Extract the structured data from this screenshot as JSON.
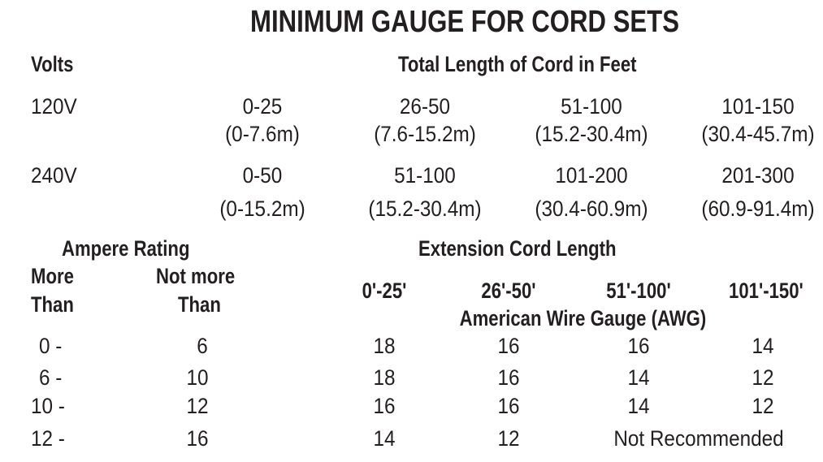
{
  "title": "MINIMUM GAUGE FOR CORD SETS",
  "volts_table": {
    "volts_header": "Volts",
    "length_header": "Total Length of Cord in Feet",
    "rows": [
      {
        "volts": "120V",
        "cells": [
          {
            "ft": "0-25",
            "m": "(0-7.6m)"
          },
          {
            "ft": "26-50",
            "m": "(7.6-15.2m)"
          },
          {
            "ft": "51-100",
            "m": "(15.2-30.4m)"
          },
          {
            "ft": "101-150",
            "m": "(30.4-45.7m)"
          }
        ]
      },
      {
        "volts": "240V",
        "cells": [
          {
            "ft": "0-50",
            "m": "(0-15.2m)"
          },
          {
            "ft": "51-100",
            "m": "(15.2-30.4m)"
          },
          {
            "ft": "101-200",
            "m": "(30.4-60.9m)"
          },
          {
            "ft": "201-300",
            "m": "(60.9-91.4m)"
          }
        ]
      }
    ]
  },
  "gauge_table": {
    "ampere_header": "Ampere Rating",
    "more_than_1": "More",
    "more_than_2": "Than",
    "not_more_1": "Not more",
    "not_more_2": "Than",
    "length_header": "Extension Cord Length",
    "lengths": [
      "0'-25'",
      "26'-50'",
      "51'-100'",
      "101'-150'"
    ],
    "awg_header": "American Wire Gauge (AWG)",
    "rows": [
      {
        "more": "0 -",
        "not_more": "6",
        "gauges": [
          "18",
          "16",
          "16",
          "14"
        ]
      },
      {
        "more": "6 -",
        "not_more": "10",
        "gauges": [
          "18",
          "16",
          "14",
          "12"
        ]
      },
      {
        "more": "10 -",
        "not_more": "12",
        "gauges": [
          "16",
          "16",
          "14",
          "12"
        ]
      },
      {
        "more": "12 -",
        "not_more": "16",
        "gauges": [
          "14",
          "12"
        ],
        "note": "Not Recommended"
      }
    ]
  }
}
